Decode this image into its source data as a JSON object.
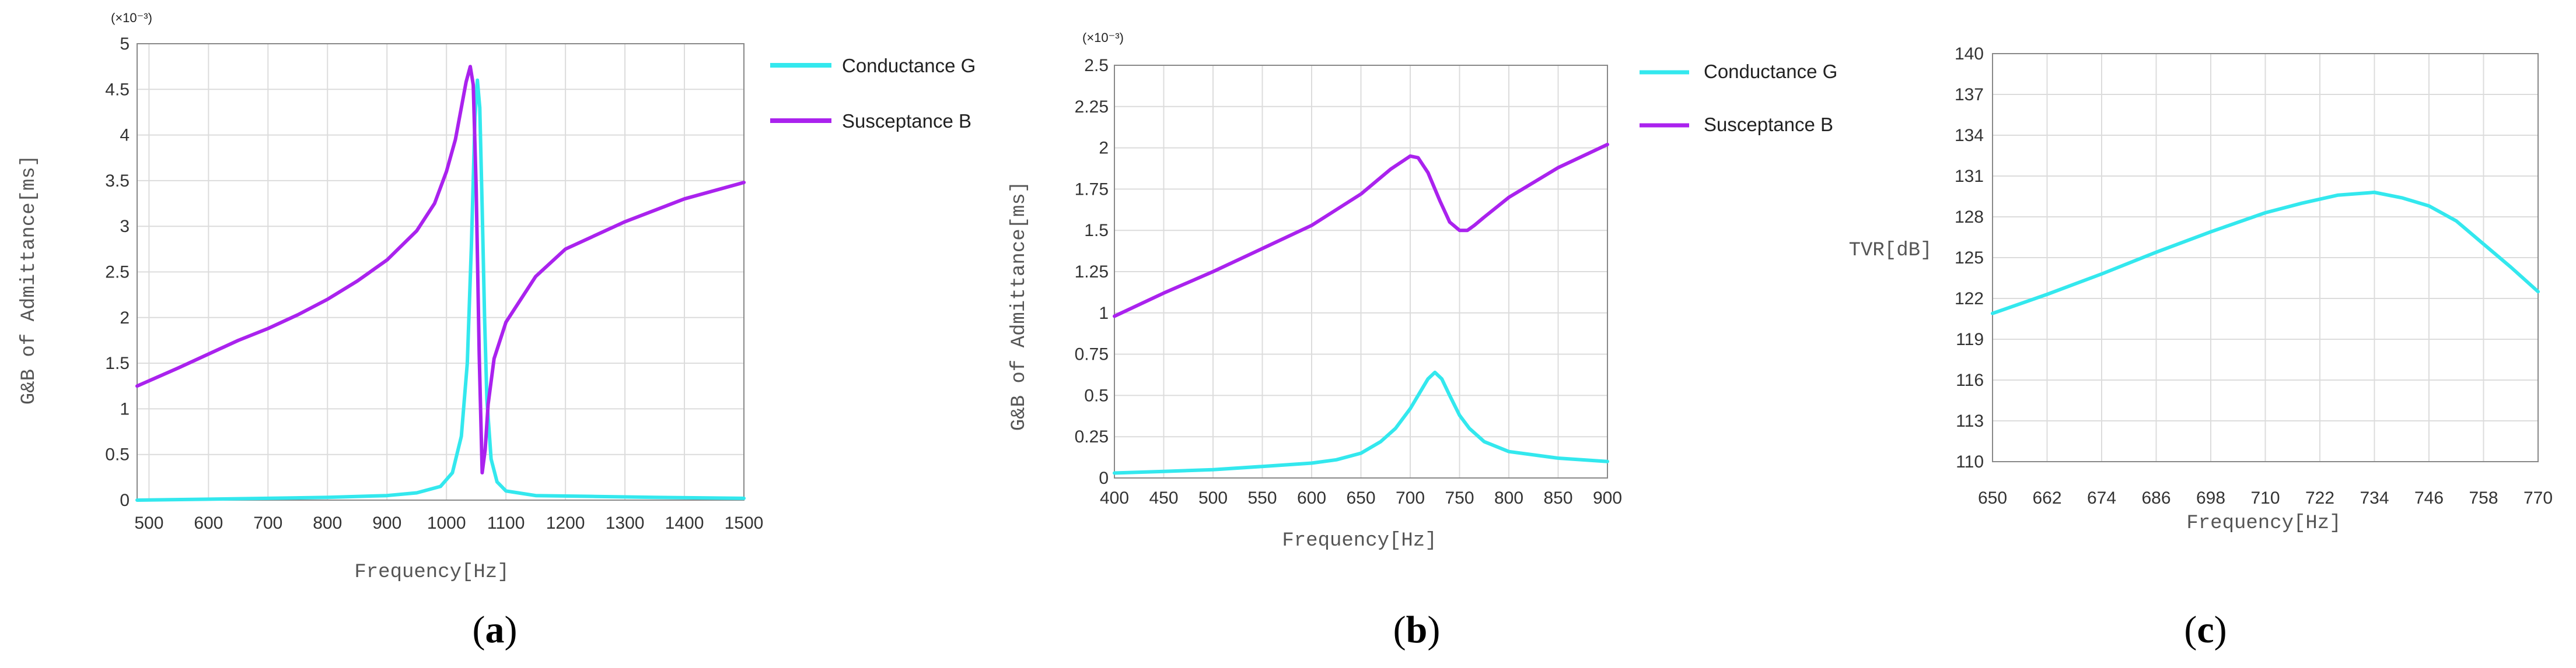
{
  "chart_data": [
    {
      "type": "line",
      "caption_open": "(",
      "caption_letter": "a",
      "caption_close": ")",
      "xlabel": "Frequency[Hz]",
      "ylabel": "G&B of Admittance[ms]",
      "multiplier": "(×10⁻³)",
      "xlim": [
        480,
        1500
      ],
      "ylim": [
        0,
        5
      ],
      "x_ticks": [
        "500",
        "600",
        "700",
        "800",
        "900",
        "1000",
        "1100",
        "1200",
        "1300",
        "1400",
        "1500"
      ],
      "y_ticks": [
        "0",
        "0.5",
        "1",
        "1.5",
        "2",
        "2.5",
        "3",
        "3.5",
        "4",
        "4.5",
        "5"
      ],
      "series": [
        {
          "name": "Conductance  G",
          "color": "#33e8ee",
          "x": [
            480,
            600,
            700,
            800,
            900,
            950,
            990,
            1010,
            1025,
            1035,
            1042,
            1048,
            1052,
            1056,
            1060,
            1064,
            1068,
            1075,
            1085,
            1100,
            1150,
            1250,
            1350,
            1500
          ],
          "y": [
            0.0,
            0.01,
            0.02,
            0.03,
            0.05,
            0.08,
            0.15,
            0.3,
            0.7,
            1.5,
            2.8,
            4.2,
            4.6,
            4.3,
            3.2,
            2.0,
            1.1,
            0.45,
            0.2,
            0.1,
            0.05,
            0.04,
            0.03,
            0.02
          ]
        },
        {
          "name": "Susceptance B",
          "color": "#aa22ee",
          "x": [
            480,
            550,
            600,
            650,
            700,
            750,
            800,
            850,
            900,
            950,
            980,
            1000,
            1015,
            1025,
            1033,
            1040,
            1045,
            1050,
            1055,
            1060,
            1065,
            1070,
            1080,
            1100,
            1150,
            1200,
            1300,
            1400,
            1500
          ],
          "y": [
            1.25,
            1.45,
            1.6,
            1.75,
            1.88,
            2.03,
            2.2,
            2.4,
            2.63,
            2.95,
            3.25,
            3.6,
            3.95,
            4.3,
            4.58,
            4.75,
            4.55,
            3.4,
            1.6,
            0.3,
            0.55,
            1.05,
            1.55,
            1.95,
            2.45,
            2.75,
            3.05,
            3.3,
            3.48
          ]
        }
      ]
    },
    {
      "type": "line",
      "caption_open": "(",
      "caption_letter": "b",
      "caption_close": ")",
      "xlabel": "Frequency[Hz]",
      "ylabel": "G&B of Admittance[ms]",
      "multiplier": "(×10⁻³)",
      "xlim": [
        400,
        900
      ],
      "ylim": [
        0,
        2.5
      ],
      "x_ticks": [
        "400",
        "450",
        "500",
        "550",
        "600",
        "650",
        "700",
        "750",
        "800",
        "850",
        "900"
      ],
      "y_ticks": [
        "0",
        "0.25",
        "0.5",
        "0.75",
        "1",
        "1.25",
        "1.5",
        "1.75",
        "2",
        "2.25",
        "2.5"
      ],
      "series": [
        {
          "name": "Conductance  G",
          "color": "#33e8ee",
          "x": [
            400,
            450,
            500,
            550,
            600,
            625,
            650,
            670,
            685,
            700,
            710,
            718,
            725,
            732,
            740,
            750,
            760,
            775,
            800,
            850,
            900
          ],
          "y": [
            0.03,
            0.04,
            0.05,
            0.07,
            0.09,
            0.11,
            0.15,
            0.22,
            0.3,
            0.42,
            0.52,
            0.6,
            0.64,
            0.6,
            0.5,
            0.38,
            0.3,
            0.22,
            0.16,
            0.12,
            0.1
          ]
        },
        {
          "name": "Susceptance B",
          "color": "#aa22ee",
          "x": [
            400,
            450,
            500,
            550,
            600,
            650,
            680,
            700,
            708,
            718,
            730,
            740,
            750,
            758,
            765,
            775,
            800,
            850,
            900
          ],
          "y": [
            0.98,
            1.12,
            1.25,
            1.39,
            1.53,
            1.72,
            1.87,
            1.95,
            1.94,
            1.85,
            1.68,
            1.55,
            1.5,
            1.5,
            1.53,
            1.58,
            1.7,
            1.88,
            2.02
          ]
        }
      ]
    },
    {
      "type": "line",
      "caption_open": "(",
      "caption_letter": "c",
      "caption_close": ")",
      "xlabel": "Frequency[Hz]",
      "ylabel": "TVR[dB]",
      "xlim": [
        650,
        770
      ],
      "ylim": [
        110,
        140
      ],
      "x_ticks": [
        "650",
        "662",
        "674",
        "686",
        "698",
        "710",
        "722",
        "734",
        "746",
        "758",
        "770"
      ],
      "y_ticks": [
        "110",
        "113",
        "116",
        "119",
        "122",
        "125",
        "128",
        "131",
        "134",
        "137",
        "140"
      ],
      "series": [
        {
          "name": "TVR",
          "color": "#33e8ee",
          "x": [
            650,
            662,
            674,
            686,
            698,
            710,
            718,
            726,
            734,
            740,
            746,
            752,
            758,
            764,
            770
          ],
          "y": [
            120.9,
            122.3,
            123.8,
            125.4,
            126.9,
            128.3,
            129.0,
            129.6,
            129.8,
            129.4,
            128.8,
            127.7,
            126.0,
            124.3,
            122.5
          ]
        }
      ]
    }
  ]
}
